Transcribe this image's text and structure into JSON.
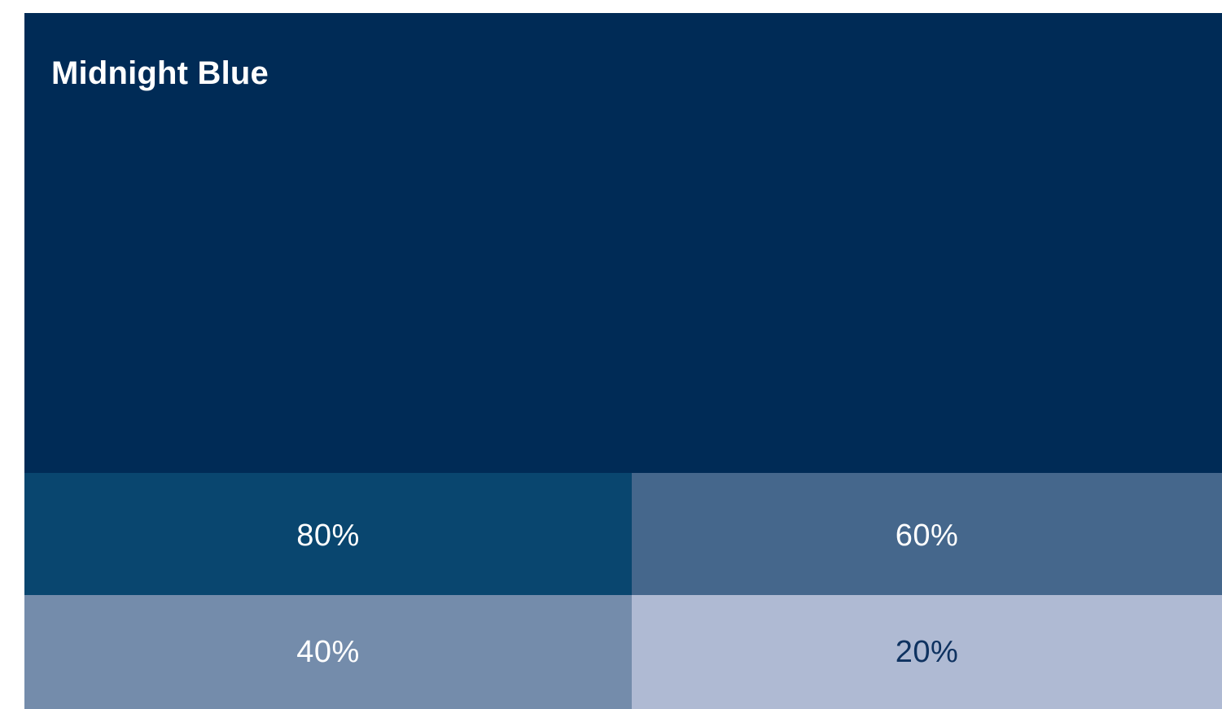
{
  "swatch": {
    "name": "Midnight Blue",
    "color": "#002b56",
    "text_color": "#ffffff"
  },
  "tints": [
    {
      "label": "80%",
      "color": "#09466f",
      "text_color": "#ffffff"
    },
    {
      "label": "60%",
      "color": "#45678c",
      "text_color": "#ffffff"
    },
    {
      "label": "40%",
      "color": "#748cab",
      "text_color": "#ffffff"
    },
    {
      "label": "20%",
      "color": "#afbad3",
      "text_color": "#0e3260"
    }
  ]
}
